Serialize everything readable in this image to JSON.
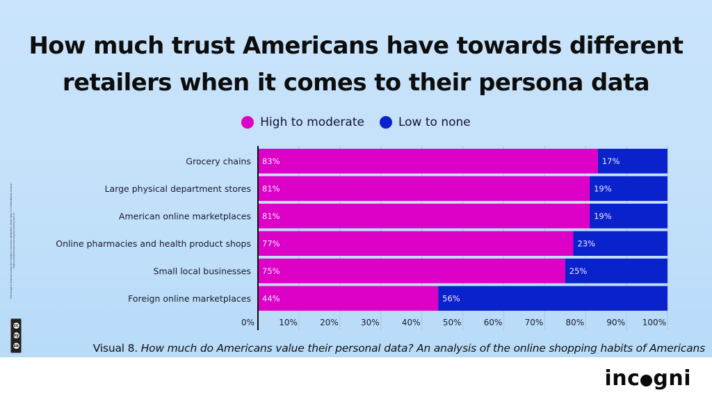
{
  "title_lines": [
    "How much trust Americans have towards different",
    "retailers when it comes to their persona data"
  ],
  "legend": [
    {
      "label": "High to moderate",
      "color": "#dd00c6"
    },
    {
      "label": "Low to none",
      "color": "#0a22cc"
    }
  ],
  "caption": {
    "prefix": "Visual 8.",
    "italic": "How much do Americans value their personal data? An analysis of the online shopping habits of Americans"
  },
  "license_text": "This image is licensed under the Creative Commons Attribution-Share Alike 3.0 International License - https://creativecommons.org/licenses/by-sa/3.0/",
  "cc_badge": {
    "icons": [
      "cc",
      "by",
      "sa"
    ]
  },
  "logo": {
    "before": "inc",
    "after": "gni"
  },
  "chart_data": {
    "type": "bar",
    "orientation": "horizontal",
    "stacked": true,
    "title": "How much trust Americans have towards different retailers when it comes to their persona data",
    "xlabel": "",
    "ylabel": "",
    "xlim": [
      0,
      100
    ],
    "grid": true,
    "legend_position": "top-center",
    "categories": [
      "Grocery chains",
      "Large physical department stores",
      "American online marketplaces",
      "Online pharmacies and health product shops",
      "Small local businesses",
      "Foreign online marketplaces"
    ],
    "series": [
      {
        "name": "High to moderate",
        "color": "#dd00c6",
        "values": [
          83,
          81,
          81,
          77,
          75,
          44
        ]
      },
      {
        "name": "Low to none",
        "color": "#0a22cc",
        "values": [
          17,
          19,
          19,
          23,
          25,
          56
        ]
      }
    ],
    "value_suffix": "%",
    "x_ticks": [
      "0%",
      "10%",
      "20%",
      "30%",
      "40%",
      "50%",
      "60%",
      "70%",
      "80%",
      "90%",
      "100%"
    ]
  }
}
